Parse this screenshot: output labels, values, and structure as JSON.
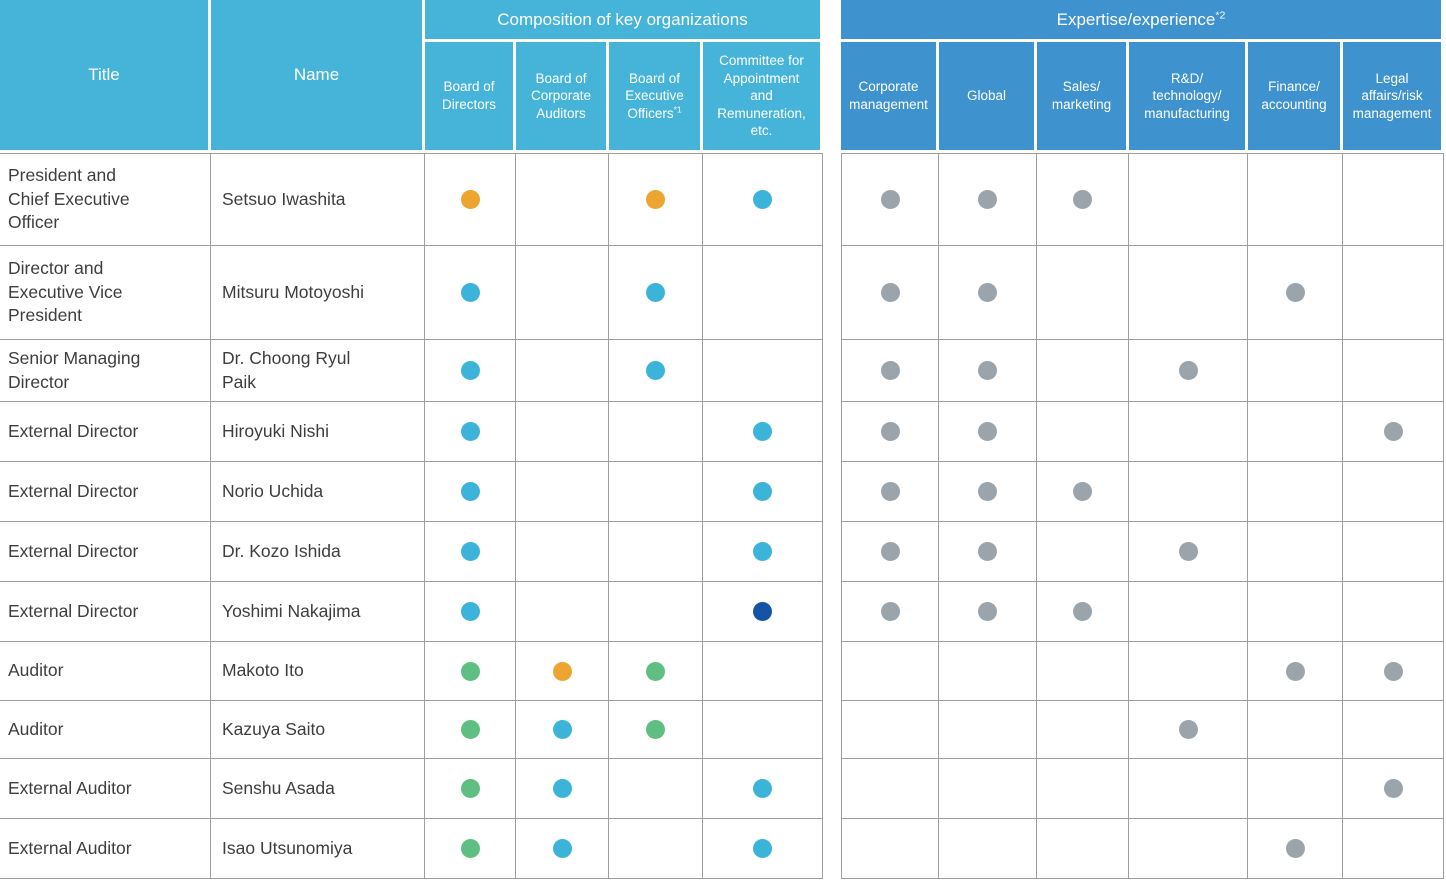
{
  "colors": {
    "header_light_blue": "#46B4D9",
    "header_dark_blue": "#3E92CE",
    "dots": {
      "orange": "#EBA530",
      "blue": "#3CB4DA",
      "navy": "#1553A4",
      "green": "#5FBE82",
      "gray": "#9BA3AB"
    }
  },
  "header": {
    "title_col": "Title",
    "name_col": "Name",
    "left_group": {
      "label": "Composition of key organizations",
      "columns": [
        {
          "label": "Board of\nDirectors",
          "footnote": ""
        },
        {
          "label": "Board of\nCorporate\nAuditors",
          "footnote": ""
        },
        {
          "label": "Board of\nExecutive\nOfficers",
          "footnote": "*1"
        },
        {
          "label": "Committee for\nAppointment\nand\nRemuneration,\netc.",
          "footnote": ""
        }
      ]
    },
    "right_group": {
      "label": "Expertise/experience",
      "footnote": "*2",
      "columns": [
        {
          "label": "Corporate\nmanagement"
        },
        {
          "label": "Global"
        },
        {
          "label": "Sales/\nmarketing"
        },
        {
          "label": "R&D/\ntechnology/\nmanufacturing"
        },
        {
          "label": "Finance/\naccounting"
        },
        {
          "label": "Legal\naffairs/risk\nmanagement"
        }
      ]
    }
  },
  "rows": [
    {
      "title": "President and\nChief Executive\nOfficer",
      "name": "Setsuo Iwashita",
      "composition": [
        "orange",
        null,
        "orange",
        "blue"
      ],
      "expertise": [
        1,
        1,
        1,
        0,
        0,
        0
      ]
    },
    {
      "title": "Director and\nExecutive Vice\nPresident",
      "name": "Mitsuru Motoyoshi",
      "composition": [
        "blue",
        null,
        "blue",
        null
      ],
      "expertise": [
        1,
        1,
        0,
        0,
        1,
        0
      ]
    },
    {
      "title": "Senior Managing\nDirector",
      "name": "Dr. Choong Ryul\nPaik",
      "composition": [
        "blue",
        null,
        "blue",
        null
      ],
      "expertise": [
        1,
        1,
        0,
        1,
        0,
        0
      ]
    },
    {
      "title": "External Director",
      "name": "Hiroyuki Nishi",
      "composition": [
        "blue",
        null,
        null,
        "blue"
      ],
      "expertise": [
        1,
        1,
        0,
        0,
        0,
        1
      ]
    },
    {
      "title": "External Director",
      "name": "Norio Uchida",
      "composition": [
        "blue",
        null,
        null,
        "blue"
      ],
      "expertise": [
        1,
        1,
        1,
        0,
        0,
        0
      ]
    },
    {
      "title": "External Director",
      "name": "Dr. Kozo Ishida",
      "composition": [
        "blue",
        null,
        null,
        "blue"
      ],
      "expertise": [
        1,
        1,
        0,
        1,
        0,
        0
      ]
    },
    {
      "title": "External Director",
      "name": "Yoshimi Nakajima",
      "composition": [
        "blue",
        null,
        null,
        "navy"
      ],
      "expertise": [
        1,
        1,
        1,
        0,
        0,
        0
      ]
    },
    {
      "title": "Auditor",
      "name": "Makoto Ito",
      "composition": [
        "green",
        "orange",
        "green",
        null
      ],
      "expertise": [
        0,
        0,
        0,
        0,
        1,
        1
      ]
    },
    {
      "title": "Auditor",
      "name": "Kazuya Saito",
      "composition": [
        "green",
        "blue",
        "green",
        null
      ],
      "expertise": [
        0,
        0,
        0,
        1,
        0,
        0
      ]
    },
    {
      "title": "External Auditor",
      "name": "Senshu Asada",
      "composition": [
        "green",
        "blue",
        null,
        "blue"
      ],
      "expertise": [
        0,
        0,
        0,
        0,
        0,
        1
      ]
    },
    {
      "title": "External Auditor",
      "name": "Isao Utsunomiya",
      "composition": [
        "green",
        "blue",
        null,
        "blue"
      ],
      "expertise": [
        0,
        0,
        0,
        0,
        1,
        0
      ]
    }
  ]
}
